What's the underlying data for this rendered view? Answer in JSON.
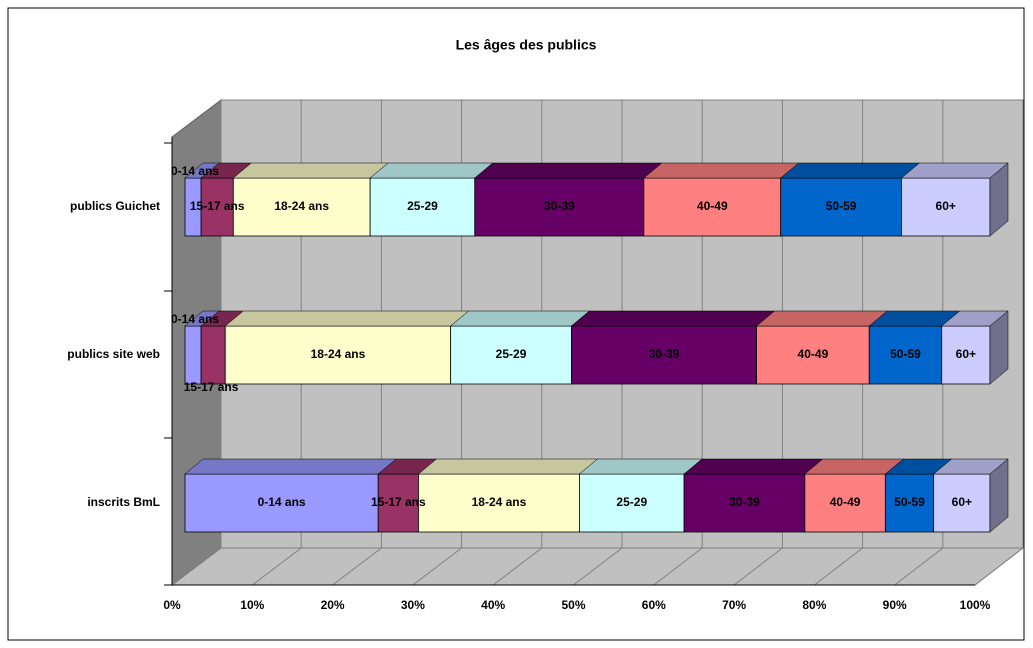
{
  "chart_data": {
    "type": "stacked-bar-3d",
    "title": "Les âges des publics",
    "categories": [
      "publics Guichet",
      "publics site web",
      "inscrits BmL"
    ],
    "series": [
      {
        "name": "0-14 ans",
        "color": "#9999ff",
        "values": [
          2,
          2,
          24
        ]
      },
      {
        "name": "15-17 ans",
        "color": "#993366",
        "values": [
          4,
          3,
          5
        ]
      },
      {
        "name": "18-24 ans",
        "color": "#ffffcc",
        "values": [
          17,
          28,
          20
        ]
      },
      {
        "name": "25-29",
        "color": "#ccffff",
        "values": [
          13,
          15,
          13
        ]
      },
      {
        "name": "30-39",
        "color": "#660066",
        "values": [
          21,
          23,
          15
        ]
      },
      {
        "name": "40-49",
        "color": "#ff8080",
        "values": [
          17,
          14,
          10
        ]
      },
      {
        "name": "50-59",
        "color": "#0066cc",
        "values": [
          15,
          9,
          6
        ]
      },
      {
        "name": "60+",
        "color": "#ccccff",
        "values": [
          11,
          6,
          7
        ]
      }
    ],
    "xlim": [
      0,
      100
    ],
    "xticks": [
      {
        "value": 0,
        "label": "0%"
      },
      {
        "value": 10,
        "label": "10%"
      },
      {
        "value": 20,
        "label": "20%"
      },
      {
        "value": 30,
        "label": "30%"
      },
      {
        "value": 40,
        "label": "40%"
      },
      {
        "value": 50,
        "label": "50%"
      },
      {
        "value": 60,
        "label": "60%"
      },
      {
        "value": 70,
        "label": "70%"
      },
      {
        "value": 80,
        "label": "80%"
      },
      {
        "value": 90,
        "label": "90%"
      },
      {
        "value": 100,
        "label": "100%"
      }
    ],
    "grid": true
  }
}
